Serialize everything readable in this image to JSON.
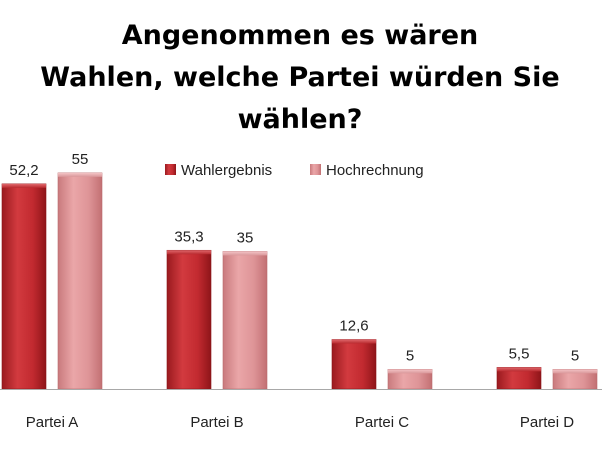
{
  "chart_data": {
    "type": "bar",
    "title_lines": [
      "Angenommen es wären",
      "Wahlen, welche Partei würden Sie",
      "wählen?"
    ],
    "categories": [
      "Partei A",
      "Partei B",
      "Partei C",
      "Partei D"
    ],
    "series": [
      {
        "name": "Wahlergebnis",
        "values": [
          52.2,
          35.3,
          12.6,
          5.5
        ],
        "labels": [
          "52,2",
          "35,3",
          "12,6",
          "5,5"
        ],
        "color": "#c0282e"
      },
      {
        "name": "Hochrechnung",
        "values": [
          55,
          35,
          5,
          5
        ],
        "labels": [
          "55",
          "35",
          "5",
          "5"
        ],
        "color": "#d98a8d"
      }
    ],
    "ylim": [
      0,
      60
    ],
    "grid": false,
    "legend": "upper-right"
  }
}
